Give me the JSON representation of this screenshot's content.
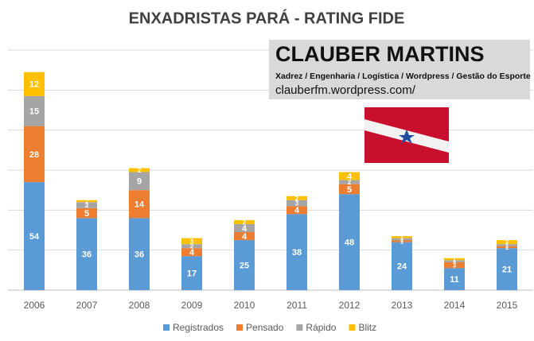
{
  "chart_data": {
    "type": "stacked-bar",
    "title": "ENXADRISTAS PARÁ - RATING FIDE",
    "categories": [
      "2006",
      "2007",
      "2008",
      "2009",
      "2010",
      "2011",
      "2012",
      "2013",
      "2014",
      "2015"
    ],
    "series": [
      {
        "name": "Registrados",
        "color": "#5b9bd5",
        "values": [
          54,
          36,
          36,
          17,
          25,
          38,
          48,
          24,
          11,
          21
        ]
      },
      {
        "name": "Pensado",
        "color": "#ed7d31",
        "values": [
          28,
          5,
          14,
          4,
          4,
          4,
          5,
          1,
          3,
          1
        ]
      },
      {
        "name": "Rápido",
        "color": "#a5a5a5",
        "values": [
          15,
          3,
          9,
          2,
          4,
          3,
          2,
          1,
          1,
          1
        ]
      },
      {
        "name": "Blitz",
        "color": "#ffc000",
        "values": [
          12,
          1,
          2,
          3,
          2,
          2,
          4,
          1,
          1,
          2
        ]
      }
    ],
    "ylim": [
      0,
      120
    ],
    "yticks": [
      0,
      20,
      40,
      60,
      80,
      100,
      120
    ],
    "grid": true,
    "annotations": [
      "CLAUBER MARTINS",
      "Xadrez / Engenharia / Logística / Wordpress / Gestão do Esporte",
      "clauberfm.wordpress.com/"
    ]
  }
}
